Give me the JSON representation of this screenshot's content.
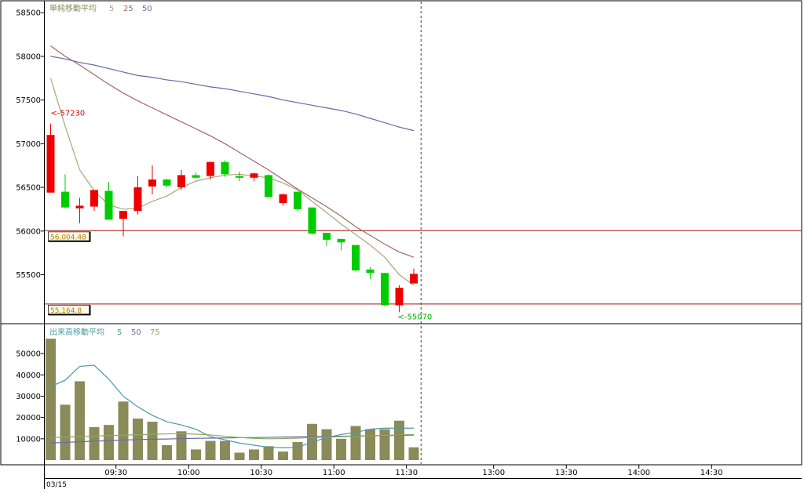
{
  "chart_data": {
    "type": "candlestick",
    "date_label": "03/15",
    "price_panel": {
      "legend_title": "単純移動平均",
      "ma_periods": [
        "5",
        "25",
        "50"
      ],
      "y_ticks": [
        "58500",
        "58000",
        "57500",
        "57000",
        "56500",
        "56000",
        "55500"
      ],
      "y_tick_values": [
        58500,
        58000,
        57500,
        57000,
        56500,
        56000,
        55500
      ],
      "ylim": [
        55020,
        58600
      ],
      "high_annotation": "<-57230",
      "high_value": 57230,
      "low_annotation": "<-55070",
      "low_value": 55070,
      "hline_upper_label": "56,004.48",
      "hline_upper_value": 56004.48,
      "hline_lower_label": "55,164.8",
      "hline_lower_value": 55164.8,
      "candles": [
        {
          "o": 56440,
          "h": 57230,
          "l": 56440,
          "c": 57100
        },
        {
          "o": 56450,
          "h": 56650,
          "l": 56260,
          "c": 56270
        },
        {
          "o": 56260,
          "h": 56380,
          "l": 56090,
          "c": 56290
        },
        {
          "o": 56280,
          "h": 56470,
          "l": 56230,
          "c": 56470
        },
        {
          "o": 56460,
          "h": 56560,
          "l": 56130,
          "c": 56130
        },
        {
          "o": 56140,
          "h": 56230,
          "l": 55940,
          "c": 56230
        },
        {
          "o": 56230,
          "h": 56630,
          "l": 56190,
          "c": 56500
        },
        {
          "o": 56510,
          "h": 56750,
          "l": 56420,
          "c": 56590
        },
        {
          "o": 56590,
          "h": 56600,
          "l": 56500,
          "c": 56520
        },
        {
          "o": 56500,
          "h": 56700,
          "l": 56470,
          "c": 56640
        },
        {
          "o": 56640,
          "h": 56670,
          "l": 56600,
          "c": 56610
        },
        {
          "o": 56630,
          "h": 56800,
          "l": 56590,
          "c": 56790
        },
        {
          "o": 56790,
          "h": 56810,
          "l": 56620,
          "c": 56650
        },
        {
          "o": 56630,
          "h": 56680,
          "l": 56570,
          "c": 56610
        },
        {
          "o": 56610,
          "h": 56670,
          "l": 56570,
          "c": 56660
        },
        {
          "o": 56640,
          "h": 56650,
          "l": 56380,
          "c": 56390
        },
        {
          "o": 56320,
          "h": 56430,
          "l": 56290,
          "c": 56420
        },
        {
          "o": 56450,
          "h": 56450,
          "l": 56230,
          "c": 56250
        },
        {
          "o": 56270,
          "h": 56270,
          "l": 55960,
          "c": 55970
        },
        {
          "o": 55980,
          "h": 55980,
          "l": 55830,
          "c": 55900
        },
        {
          "o": 55910,
          "h": 55910,
          "l": 55780,
          "c": 55870
        },
        {
          "o": 55840,
          "h": 55840,
          "l": 55540,
          "c": 55550
        },
        {
          "o": 55560,
          "h": 55590,
          "l": 55450,
          "c": 55520
        },
        {
          "o": 55520,
          "h": 55520,
          "l": 55140,
          "c": 55150
        },
        {
          "o": 55150,
          "h": 55380,
          "l": 55070,
          "c": 55350
        },
        {
          "o": 55400,
          "h": 55570,
          "l": 55400,
          "c": 55510
        }
      ],
      "ma_series": [
        {
          "name": "5",
          "color": "#a8a878",
          "values": [
            57750,
            57200,
            56700,
            56460,
            56300,
            56250,
            56260,
            56340,
            56400,
            56500,
            56570,
            56610,
            56640,
            56650,
            56630,
            56610,
            56550,
            56470,
            56340,
            56210,
            56080,
            55960,
            55840,
            55700,
            55500,
            55380
          ]
        },
        {
          "name": "25",
          "color": "#a06868",
          "values": [
            58120,
            58000,
            57900,
            57790,
            57680,
            57580,
            57490,
            57410,
            57330,
            57250,
            57170,
            57090,
            57000,
            56900,
            56800,
            56700,
            56590,
            56480,
            56380,
            56280,
            56170,
            56050,
            55950,
            55850,
            55760,
            55700
          ]
        },
        {
          "name": "50",
          "color": "#6868a8",
          "values": [
            58000,
            57970,
            57930,
            57900,
            57860,
            57820,
            57780,
            57760,
            57730,
            57710,
            57680,
            57650,
            57630,
            57600,
            57570,
            57540,
            57500,
            57470,
            57440,
            57410,
            57380,
            57340,
            57290,
            57240,
            57190,
            57150
          ]
        }
      ]
    },
    "volume_panel": {
      "legend_title": "出来高移動平均",
      "ma_periods": [
        "5",
        "50",
        "75"
      ],
      "y_ticks": [
        "50000",
        "40000",
        "30000",
        "20000",
        "10000"
      ],
      "y_tick_values": [
        50000,
        40000,
        30000,
        20000,
        10000
      ],
      "ylim": [
        0,
        58500
      ],
      "bar_color": "#8b8b5a",
      "volumes": [
        57000,
        26000,
        37000,
        15500,
        16500,
        27500,
        19500,
        18000,
        7000,
        13500,
        5000,
        9000,
        9000,
        3500,
        5000,
        6500,
        4000,
        8500,
        17000,
        14500,
        10000,
        16000,
        14500,
        14500,
        18500,
        6000
      ],
      "ma_series": [
        {
          "name": "5",
          "color": "#4a9aa0",
          "values": [
            34500,
            37500,
            44000,
            44500,
            38000,
            30000,
            25000,
            21000,
            18000,
            16500,
            14500,
            11000,
            9500,
            8000,
            7000,
            6000,
            5800,
            6000,
            8500,
            10500,
            12000,
            13000,
            14500,
            15000,
            15000,
            15000
          ]
        },
        {
          "name": "50",
          "color": "#6a6aa6",
          "values": [
            8000,
            8300,
            8600,
            8900,
            9100,
            9400,
            9600,
            9800,
            9900,
            10100,
            10200,
            10300,
            10400,
            10500,
            10600,
            10700,
            10800,
            10900,
            11000,
            11100,
            11200,
            11300,
            11400,
            11500,
            11600,
            11700
          ]
        },
        {
          "name": "75",
          "color": "#88aa66",
          "values": [
            10500,
            10800,
            11000,
            11300,
            11500,
            11700,
            11900,
            12100,
            12300,
            12400,
            12200,
            11800,
            11200,
            10600,
            10200,
            10000,
            10100,
            10300,
            10600,
            10800,
            11000,
            11200,
            11400,
            11600,
            11800,
            12000
          ]
        }
      ]
    },
    "x_axis": {
      "tick_labels": [
        "09:30",
        "10:00",
        "10:30",
        "11:00",
        "11:30",
        "13:00",
        "13:30",
        "14:00",
        "14:30"
      ],
      "tick_slots": [
        4.5,
        9.5,
        14.5,
        19.5,
        24.5,
        30.5,
        35.5,
        40.5,
        45.5
      ],
      "dashed_slot": 25.5
    }
  }
}
